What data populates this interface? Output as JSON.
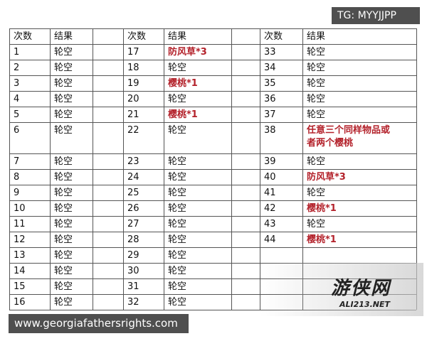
{
  "table": {
    "header": [
      "次数",
      "结果",
      "次数",
      "结果",
      "次数",
      "结果"
    ],
    "rows": [
      [
        1,
        "轮空",
        17,
        {
          "text": "防风草*3",
          "color": "#b3212a"
        },
        33,
        "轮空"
      ],
      [
        2,
        "轮空",
        18,
        "轮空",
        34,
        "轮空"
      ],
      [
        3,
        "轮空",
        19,
        {
          "text": "樱桃*1",
          "color": "#b3212a"
        },
        35,
        "轮空"
      ],
      [
        4,
        "轮空",
        20,
        "轮空",
        36,
        "轮空"
      ],
      [
        5,
        "轮空",
        21,
        {
          "text": "樱桃*1",
          "color": "#b3212a"
        },
        37,
        "轮空"
      ],
      [
        6,
        "轮空",
        22,
        "轮空",
        38,
        {
          "text": "任意三个同样物品或者两个樱桃",
          "color": "#b3212a"
        }
      ],
      [
        7,
        "轮空",
        23,
        "轮空",
        39,
        "轮空"
      ],
      [
        8,
        "轮空",
        24,
        "轮空",
        40,
        {
          "text": "防风草*3",
          "color": "#b3212a"
        }
      ],
      [
        9,
        "轮空",
        25,
        "轮空",
        41,
        "轮空"
      ],
      [
        10,
        "轮空",
        26,
        "轮空",
        42,
        {
          "text": "樱桃*1",
          "color": "#b3212a"
        }
      ],
      [
        11,
        "轮空",
        27,
        "轮空",
        43,
        "轮空"
      ],
      [
        12,
        "轮空",
        28,
        "轮空",
        44,
        {
          "text": "樱桃*1",
          "color": "#b3212a"
        }
      ],
      [
        13,
        "轮空",
        29,
        "轮空",
        null,
        null
      ],
      [
        14,
        "轮空",
        30,
        "轮空",
        null,
        null
      ],
      [
        15,
        "轮空",
        31,
        "轮空",
        null,
        null
      ],
      [
        16,
        "轮空",
        32,
        "轮空",
        null,
        null
      ]
    ]
  },
  "watermarks": {
    "top": "TG: MYYJJPP",
    "bottom": "www.georgiafathersrights.com",
    "logo": "游侠网",
    "logo_url": "ALI213.NET"
  }
}
